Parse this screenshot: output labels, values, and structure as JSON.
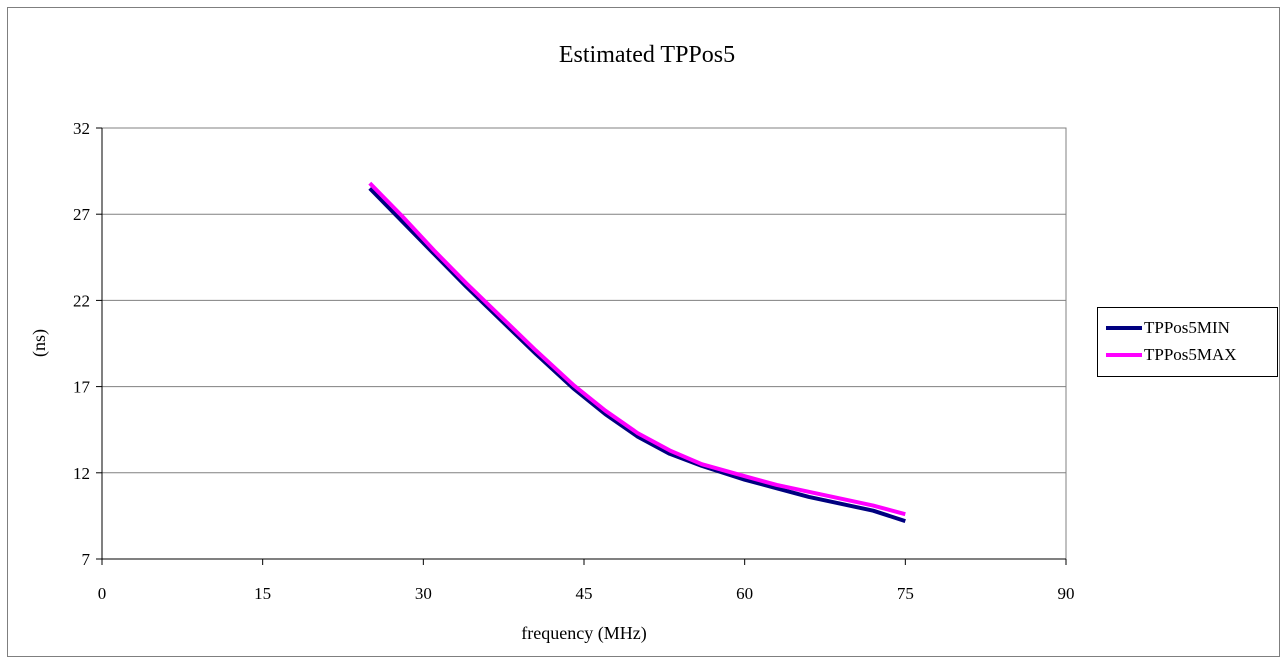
{
  "chart_data": {
    "type": "line",
    "title": "Estimated TPPos5",
    "xlabel": "frequency (MHz)",
    "ylabel": "(ns)",
    "xlim": [
      0,
      90
    ],
    "ylim": [
      7,
      32
    ],
    "xticks": [
      "0",
      "15",
      "30",
      "45",
      "60",
      "75",
      "90"
    ],
    "yticks": [
      "7",
      "12",
      "17",
      "22",
      "27",
      "32"
    ],
    "grid": "horizontal",
    "legend_position": "right",
    "series": [
      {
        "name": "TPPos5MIN",
        "color": "#000080",
        "x": [
          25,
          28,
          31,
          34,
          37.5,
          40.5,
          44,
          47,
          50,
          53,
          56,
          60,
          63,
          66,
          69,
          72,
          75
        ],
        "y": [
          28.5,
          26.6,
          24.7,
          22.8,
          20.7,
          18.9,
          16.9,
          15.4,
          14.1,
          13.1,
          12.4,
          11.6,
          11.1,
          10.6,
          10.2,
          9.8,
          9.2
        ]
      },
      {
        "name": "TPPos5MAX",
        "color": "#ff00ff",
        "x": [
          25,
          28,
          31,
          34,
          37.5,
          40.5,
          44,
          47,
          50,
          53,
          56,
          60,
          63,
          66,
          69,
          72,
          75
        ],
        "y": [
          28.8,
          26.9,
          24.9,
          23.0,
          20.9,
          19.1,
          17.1,
          15.6,
          14.3,
          13.3,
          12.5,
          11.8,
          11.3,
          10.9,
          10.5,
          10.1,
          9.6
        ]
      }
    ]
  }
}
